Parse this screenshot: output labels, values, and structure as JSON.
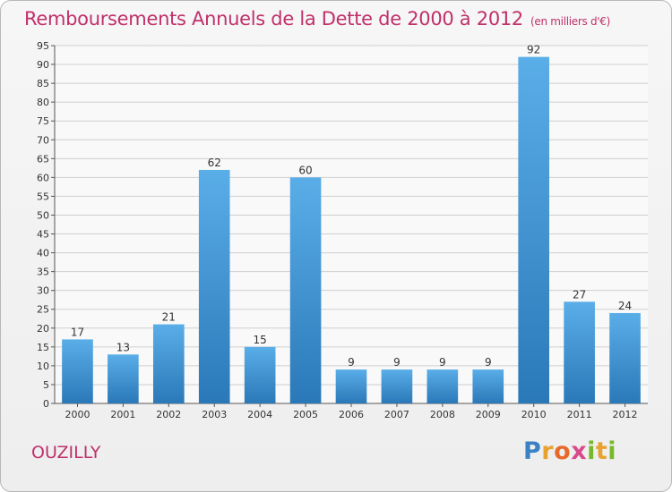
{
  "header": {
    "title": "Remboursements Annuels de la Dette de 2000 à 2012",
    "subtitle": "(en milliers d'€)"
  },
  "footer": {
    "city": "OUZILLY",
    "logo_text": "Proxiti"
  },
  "colors": {
    "title": "#c0306a",
    "bar_top": "#5aaee8",
    "bar_bottom": "#2a78b8",
    "grid": "#cfcfcf"
  },
  "chart_data": {
    "type": "bar",
    "title": "Remboursements Annuels de la Dette de 2000 à 2012",
    "subtitle": "(en milliers d'€)",
    "xlabel": "",
    "ylabel": "",
    "categories": [
      "2000",
      "2001",
      "2002",
      "2003",
      "2004",
      "2005",
      "2006",
      "2007",
      "2008",
      "2009",
      "2010",
      "2011",
      "2012"
    ],
    "values": [
      17,
      13,
      21,
      62,
      15,
      60,
      9,
      9,
      9,
      9,
      92,
      27,
      24
    ],
    "ylim": [
      0,
      95
    ],
    "yticks": [
      0,
      5,
      10,
      15,
      20,
      25,
      30,
      35,
      40,
      45,
      50,
      55,
      60,
      65,
      70,
      75,
      80,
      85,
      90,
      95
    ],
    "grid": true,
    "data_labels": true
  }
}
